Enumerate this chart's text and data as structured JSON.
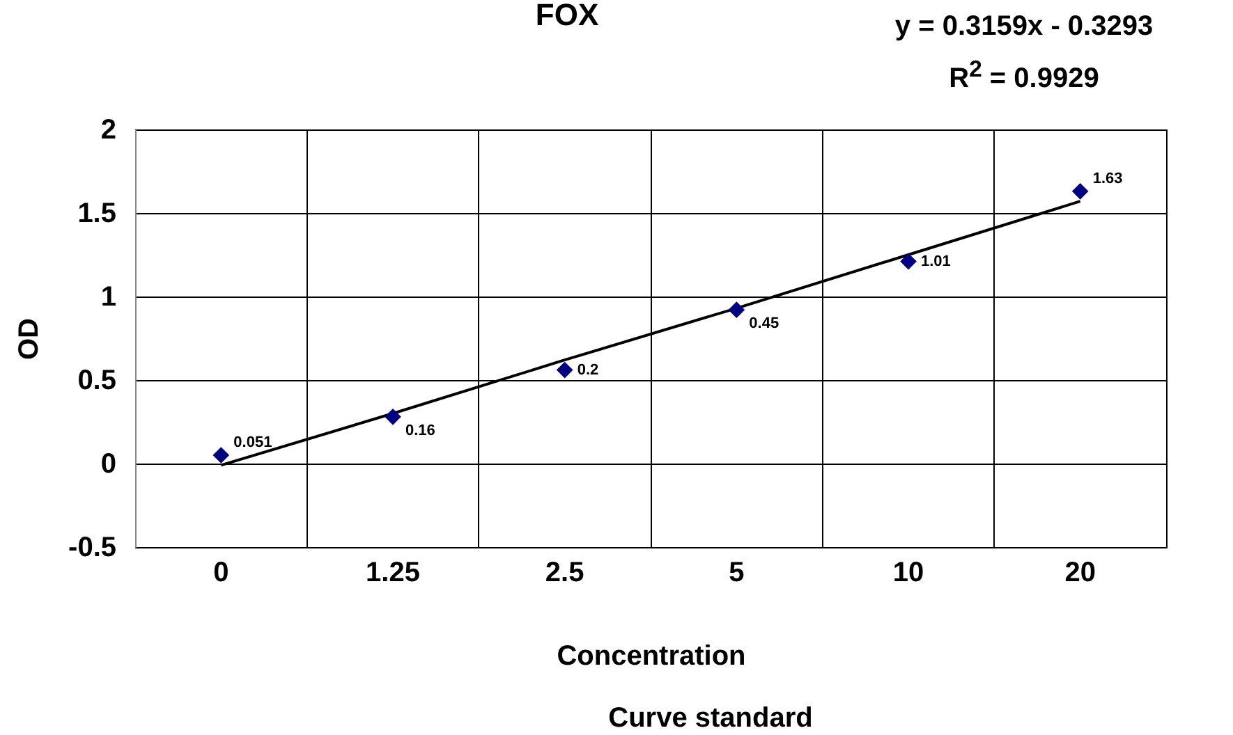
{
  "chart_data": {
    "type": "scatter",
    "title": "FOX",
    "xlabel": "Concentration",
    "ylabel": "OD",
    "annotations": [
      "y = 0.3159x - 0.3293",
      "R$^{2}$ = 0.9929",
      "Curve standard",
      {
        "text": "0.051",
        "x": "0",
        "y": 0.05
      },
      {
        "text": "0.16",
        "x": "1.25",
        "y": 0.28
      },
      {
        "text": "0.2",
        "x": "2.5",
        "y": 0.56
      },
      {
        "text": "0.45",
        "x": "5",
        "y": 0.92
      },
      {
        "text": "1.01",
        "x": "10",
        "y": 1.21
      },
      {
        "text": "1.63",
        "x": "20",
        "y": 1.63
      }
    ],
    "categories": [
      "0",
      "1.25",
      "2.5",
      "5",
      "10",
      "20"
    ],
    "ylim": [
      -0.5,
      2
    ],
    "yticks": [
      -0.5,
      0,
      0.5,
      1,
      1.5,
      2
    ],
    "grid": true,
    "series": [
      {
        "type": "scatter",
        "color": "#000080",
        "marker": "diamond",
        "values": [
          0.05,
          0.28,
          0.56,
          0.92,
          1.21,
          1.63
        ]
      },
      {
        "type": "line",
        "color": "#000000",
        "marker": "none",
        "values": [
          -0.01,
          0.3,
          0.62,
          0.93,
          1.25,
          1.57
        ]
      }
    ]
  }
}
